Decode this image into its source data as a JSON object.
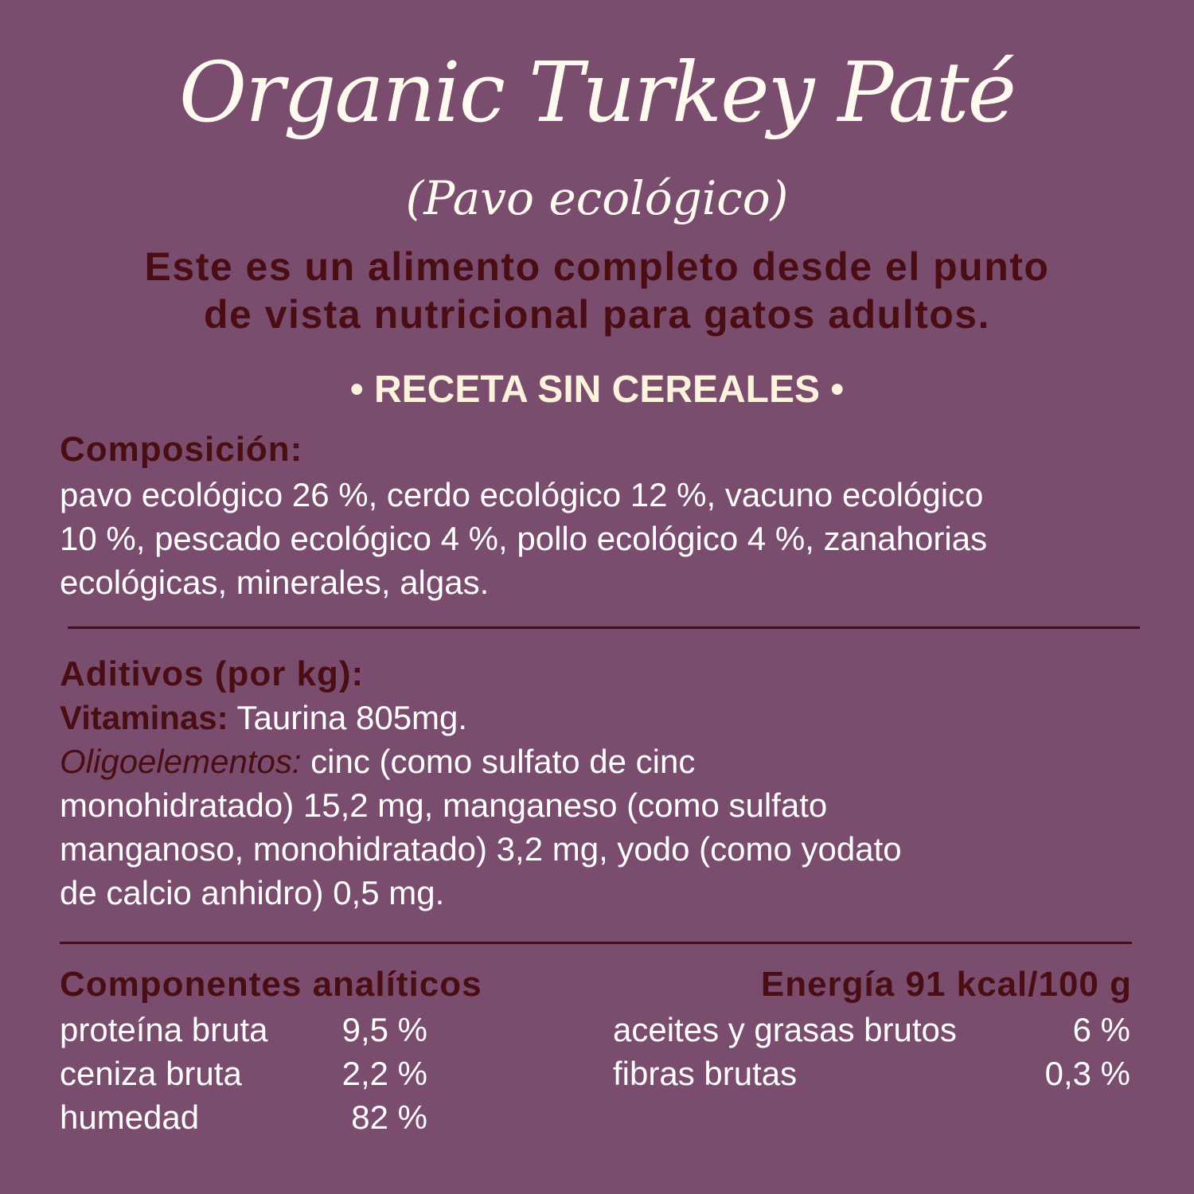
{
  "title": "Organic Turkey Paté",
  "subtitle": "(Pavo ecológico)",
  "intro": [
    "Este es un alimento completo desde el punto",
    "de vista nutricional para gatos adultos."
  ],
  "badge": "• RECETA SIN CEREALES •",
  "composition": {
    "heading": "Composición:",
    "lines": [
      "pavo ecológico 26 %, cerdo ecológico 12 %, vacuno ecológico",
      "10 %, pescado ecológico 4 %, pollo ecológico 4 %, zanahorias",
      "ecológicas, minerales, algas."
    ]
  },
  "additives": {
    "heading": "Aditivos (por kg):",
    "vitamins_label": "Vitaminas:",
    "vitamins_text": " Taurina 805mg.",
    "trace_label": "Oligoelementos:",
    "trace_first": " cinc (como sulfato de cinc",
    "trace_lines": [
      "monohidratado) 15,2 mg, manganeso (como sulfato",
      "manganoso, monohidratado) 3,2 mg, yodo (como yodato",
      "de calcio anhidro) 0,5 mg."
    ]
  },
  "analytics": {
    "heading": "Componentes analíticos",
    "energy": "Energía 91 kcal/100 g",
    "left": [
      {
        "label": "proteína bruta",
        "value": "9,5 %"
      },
      {
        "label": "ceniza bruta",
        "value": "2,2 %"
      },
      {
        "label": "humedad",
        "value": "82 %"
      }
    ],
    "right": [
      {
        "label": "aceites y grasas brutos",
        "value": "6 %"
      },
      {
        "label": "fibras brutas",
        "value": "0,3 %"
      }
    ]
  },
  "colors": {
    "background": "#7a4d6e",
    "dark_text": "#4a0d14",
    "light_text": "#ffffff"
  }
}
